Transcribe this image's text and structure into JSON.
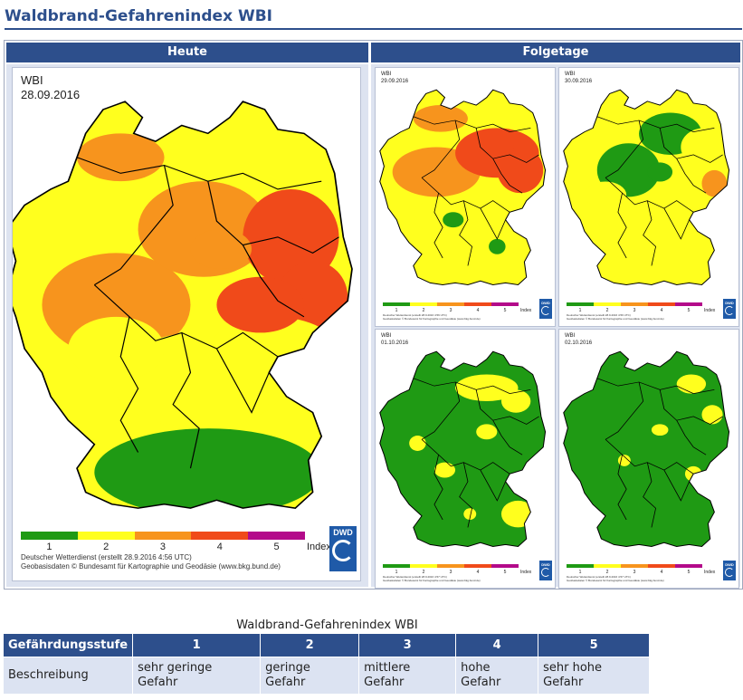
{
  "page": {
    "title": "Waldbrand-Gefahrenindex WBI"
  },
  "headers": {
    "today": "Heute",
    "following": "Folgetage"
  },
  "palette": {
    "level_1": "#1f9a14",
    "level_2": "#ffff1e",
    "level_3": "#f7941d",
    "level_4": "#f04a1a",
    "level_5": "#b30a8a",
    "header_blue": "#2d4f8c"
  },
  "maps": [
    {
      "id": "today",
      "label": "WBI",
      "date": "28.09.2016",
      "legend_values": [
        "1",
        "2",
        "3",
        "4",
        "5"
      ],
      "legend_unit": "Index",
      "credit_line1": "Deutscher Wetterdienst (erstellt 28.9.2016 4:56 UTC)",
      "credit_line2": "Geobasisdaten © Bundesamt für Kartographie und Geodäsie (www.bkg.bund.de)",
      "logo": "DWD"
    },
    {
      "id": "day1",
      "label": "WBI",
      "date": "29.09.2016",
      "legend_values": [
        "1",
        "2",
        "3",
        "4",
        "5"
      ],
      "legend_unit": "Index",
      "credit_line1": "Deutscher Wetterdienst (erstellt 28.9.2016 4:56 UTC)",
      "credit_line2": "Geobasisdaten © Bundesamt für Kartographie und Geodäsie (www.bkg.bund.de)",
      "logo": "DWD"
    },
    {
      "id": "day2",
      "label": "WBI",
      "date": "30.09.2016",
      "legend_values": [
        "1",
        "2",
        "3",
        "4",
        "5"
      ],
      "legend_unit": "Index",
      "credit_line1": "Deutscher Wetterdienst (erstellt 28.9.2016 4:56 UTC)",
      "credit_line2": "Geobasisdaten © Bundesamt für Kartographie und Geodäsie (www.bkg.bund.de)",
      "logo": "DWD"
    },
    {
      "id": "day3",
      "label": "WBI",
      "date": "01.10.2016",
      "legend_values": [
        "1",
        "2",
        "3",
        "4",
        "5"
      ],
      "legend_unit": "Index",
      "credit_line1": "Deutscher Wetterdienst (erstellt 28.9.2016 4:57 UTC)",
      "credit_line2": "Geobasisdaten © Bundesamt für Kartographie und Geodäsie (www.bkg.bund.de)",
      "logo": "DWD"
    },
    {
      "id": "day4",
      "label": "WBI",
      "date": "02.10.2016",
      "legend_values": [
        "1",
        "2",
        "3",
        "4",
        "5"
      ],
      "legend_unit": "Index",
      "credit_line1": "Deutscher Wetterdienst (erstellt 28.9.2016 4:57 UTC)",
      "credit_line2": "Geobasisdaten © Bundesamt für Kartographie und Geodäsie (www.bkg.bund.de)",
      "logo": "DWD"
    }
  ],
  "table": {
    "caption": "Waldbrand-Gefahrenindex WBI",
    "header_label": "Gefährdungsstufe",
    "levels": [
      "1",
      "2",
      "3",
      "4",
      "5"
    ],
    "row_label": "Beschreibung",
    "descriptions": [
      [
        "sehr geringe",
        "Gefahr"
      ],
      [
        "geringe",
        "Gefahr"
      ],
      [
        "mittlere",
        "Gefahr"
      ],
      [
        "hohe",
        "Gefahr"
      ],
      [
        "sehr hohe",
        "Gefahr"
      ]
    ]
  }
}
